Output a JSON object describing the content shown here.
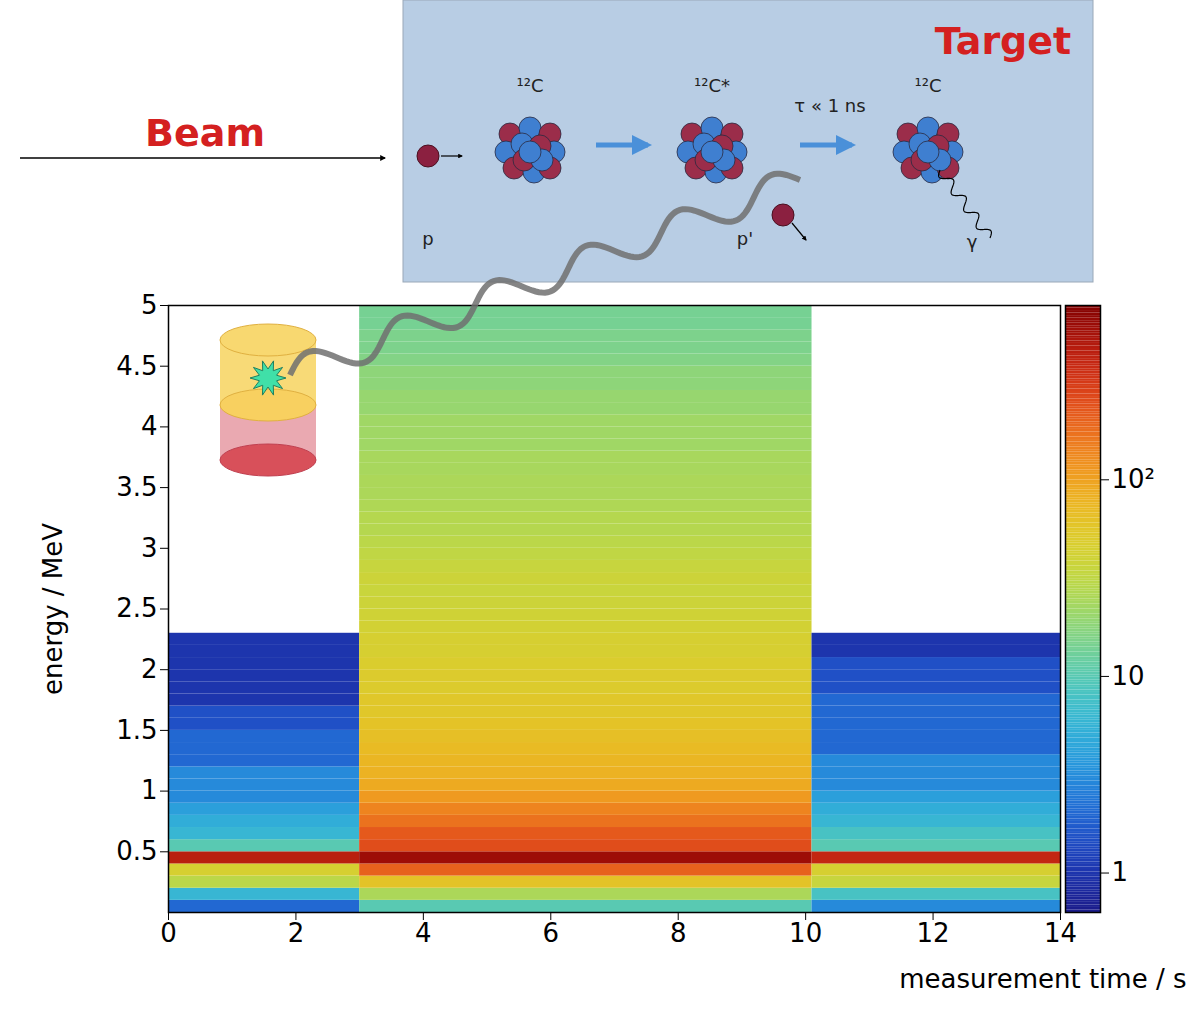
{
  "chart_data": {
    "type": "heatmap",
    "x_label": "measurement time / s",
    "y_label": "energy / MeV",
    "xlim": [
      0,
      14
    ],
    "xticks": [
      0,
      2,
      4,
      6,
      8,
      10,
      12,
      14
    ],
    "ylim": [
      0,
      5
    ],
    "yticks": [
      0.5,
      1,
      1.5,
      2,
      2.5,
      3,
      3.5,
      4,
      4.5,
      5
    ],
    "time_bins": [
      0,
      3,
      10.1,
      14
    ],
    "energy_bins": [
      0,
      0.1,
      0.2,
      0.3,
      0.4,
      0.5,
      0.6,
      0.7,
      0.8,
      0.9,
      1,
      1.1,
      1.2,
      1.3,
      1.4,
      1.5,
      1.6,
      1.7,
      1.8,
      1.9,
      2,
      2.1,
      2.2,
      2.3,
      2.4,
      2.5,
      2.6,
      2.7,
      2.8,
      2.9,
      3,
      3.1,
      3.2,
      3.3,
      3.4,
      3.5,
      3.6,
      3.7,
      3.8,
      3.9,
      4,
      4.1,
      4.2,
      4.3,
      4.4,
      4.5,
      4.6,
      4.7,
      4.8,
      4.9,
      5
    ],
    "counts": [
      [
        2,
        6,
        30,
        45,
        450,
        10,
        6,
        5,
        4,
        3,
        3,
        3,
        2,
        2,
        2,
        1.5,
        1.5,
        1,
        1,
        1,
        1,
        1,
        1,
        0,
        0,
        0,
        0,
        0,
        0,
        0,
        0,
        0,
        0,
        0,
        0,
        0,
        0,
        0,
        0,
        0,
        0,
        0,
        0,
        0,
        0,
        0,
        0,
        0,
        0,
        0
      ],
      [
        10,
        25,
        60,
        200,
        600,
        250,
        220,
        170,
        140,
        110,
        90,
        80,
        75,
        70,
        65,
        60,
        55,
        55,
        50,
        50,
        48,
        45,
        45,
        42,
        40,
        38,
        36,
        38,
        35,
        32,
        30,
        28,
        28,
        26,
        25,
        25,
        24,
        24,
        22,
        22,
        22,
        20,
        20,
        18,
        18,
        16,
        15,
        15,
        14,
        14
      ],
      [
        3,
        8,
        35,
        45,
        400,
        10,
        8,
        6,
        5,
        4,
        3,
        3,
        3,
        2,
        2,
        2,
        2,
        2,
        1.5,
        1.5,
        1.5,
        1,
        1,
        0,
        0,
        0,
        0,
        0,
        0,
        0,
        0,
        0,
        0,
        0,
        0,
        0,
        0,
        0,
        0,
        0,
        0,
        0,
        0,
        0,
        0,
        0,
        0,
        0,
        0,
        0
      ]
    ],
    "colorbar": {
      "range": [
        0.63,
        770
      ],
      "ticks": [
        1,
        10,
        {
          "value": 100,
          "label": "10²"
        }
      ],
      "log": true
    }
  },
  "diagram": {
    "beam": "Beam",
    "target": "Target",
    "nuclei": [
      "¹²C",
      "¹²C*",
      "¹²C"
    ],
    "particles": [
      "p",
      "p'",
      "γ"
    ],
    "lifetime": "τ « 1 ns"
  }
}
